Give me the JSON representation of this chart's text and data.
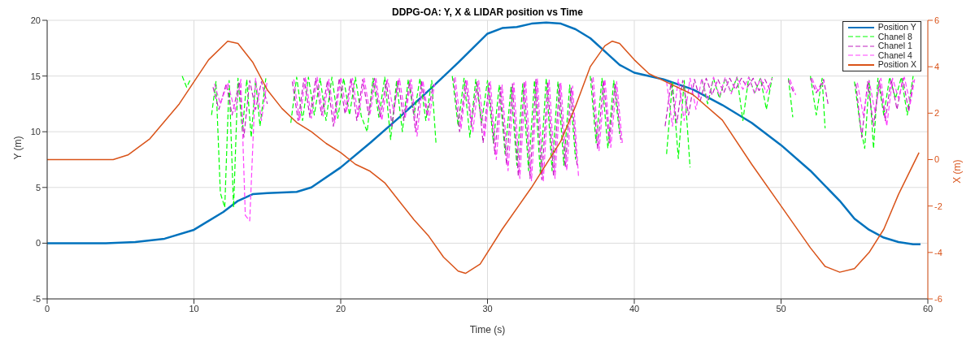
{
  "chart_data": {
    "type": "line",
    "title": "DDPG-OA: Y, X & LIDAR position vs Time",
    "xlabel": "Time (s)",
    "ylabel": "Y (m)",
    "y2label": "X (m)",
    "xlim": [
      0,
      60
    ],
    "xticks": [
      0,
      10,
      20,
      30,
      40,
      50,
      60
    ],
    "ylim": [
      -5,
      20
    ],
    "yticks": [
      -5,
      0,
      5,
      10,
      15,
      20
    ],
    "y2lim": [
      -6,
      6
    ],
    "y2ticks": [
      -6,
      -4,
      -2,
      0,
      2,
      4,
      6
    ],
    "grid": true,
    "legend": "top right",
    "marker": "none",
    "series": [
      {
        "name": "Position Y",
        "color": "#0072bd",
        "line_style": "solid",
        "x": [
          0,
          4,
          6,
          8,
          10,
          12,
          13,
          14,
          15,
          17,
          18,
          20,
          22,
          24,
          26,
          28,
          30,
          31,
          32,
          33,
          34,
          35,
          36,
          37,
          38,
          39,
          40,
          42,
          44,
          46,
          48,
          50,
          52,
          54,
          55,
          56,
          57,
          58,
          59,
          59.5
        ],
        "values": [
          0,
          0,
          0.1,
          0.4,
          1.2,
          2.8,
          3.8,
          4.4,
          4.5,
          4.6,
          5,
          6.8,
          9,
          11.3,
          13.7,
          16.2,
          18.8,
          19.3,
          19.4,
          19.7,
          19.8,
          19.7,
          19.2,
          18.4,
          17.2,
          16,
          15.3,
          14.7,
          13.8,
          12.4,
          10.8,
          8.8,
          6.5,
          3.8,
          2.2,
          1.2,
          0.5,
          0.1,
          -0.1,
          -0.1
        ]
      },
      {
        "name": "Chanel 8",
        "color": "#00ff00",
        "line_style": "dashed",
        "x": [
          9.2,
          9.5,
          9.8,
          10.1,
          11.2,
          11.5,
          11.8,
          12.1,
          12.4,
          12.7,
          13,
          13.3,
          13.6,
          13.9,
          14.2,
          14.5,
          14.9,
          15.2,
          16.6,
          17,
          17.4,
          17.8,
          18.2,
          18.6,
          19,
          19.4,
          19.8,
          20.2,
          20.6,
          21,
          21.4,
          21.8,
          22.2,
          22.6,
          23,
          23.4,
          23.8,
          24.2,
          24.6,
          25,
          25.4,
          25.8,
          26.2,
          26.5,
          26.8,
          27.6,
          28,
          28.4,
          28.8,
          29.2,
          29.6,
          30,
          30.4,
          30.8,
          31.2,
          31.6,
          32,
          32.4,
          32.8,
          33.2,
          33.6,
          34,
          34.4,
          34.8,
          35.2,
          35.6,
          36,
          36.4,
          37,
          37.4,
          37.8,
          38.2,
          38.6,
          39,
          39.3,
          42.2,
          42.6,
          43,
          43.4,
          43.8,
          44.2,
          44.6,
          45,
          45.4,
          45.8,
          46.2,
          46.6,
          47,
          47.4,
          47.8,
          48.2,
          48.6,
          49,
          49.4,
          49.8,
          50.5,
          50.8,
          51.2,
          52,
          52.4,
          52.8,
          53,
          53.3,
          55,
          55.4,
          55.7,
          56,
          56.3,
          56.6,
          57,
          57.4,
          57.8,
          58.2,
          58.6,
          59
        ],
        "values": [
          15,
          14,
          14.8,
          null,
          11.5,
          14.5,
          4.5,
          3.2,
          14.6,
          3.2,
          14.8,
          10,
          14.7,
          9.5,
          14.6,
          10.5,
          14.8,
          null,
          10.8,
          14.9,
          11,
          14.9,
          11.5,
          14.8,
          11,
          14.9,
          11.2,
          14.8,
          11.5,
          14.9,
          11.4,
          10,
          14.8,
          11.3,
          14.9,
          9.3,
          14.5,
          10,
          14.7,
          11.5,
          14.8,
          11,
          14.6,
          8.8,
          null,
          15,
          10.5,
          14.8,
          9.5,
          14.7,
          10.8,
          14.6,
          9,
          14.2,
          8,
          14,
          7,
          14.3,
          6.5,
          14.6,
          6.2,
          14.8,
          6.5,
          14.5,
          7,
          14.2,
          7.5,
          null,
          15,
          9,
          14.8,
          8.5,
          14.6,
          9.8,
          null,
          8,
          14.5,
          7.6,
          14.6,
          6.8,
          null,
          14.7,
          12.5,
          14.8,
          13,
          14.8,
          13.5,
          14.9,
          11,
          14.9,
          13.5,
          14.8,
          12,
          14.9,
          null,
          14.8,
          11.3,
          null,
          15,
          11.5,
          14.8,
          10.3,
          null,
          14.5,
          10.5,
          8.5,
          14.6,
          8.5,
          14.8,
          11.5,
          14.9,
          13,
          14.9,
          11.5,
          15
        ]
      },
      {
        "name": "Chanel 1",
        "color": "#c020c0",
        "line_style": "dashed",
        "x": [
          11.3,
          11.7,
          12.2,
          12.6,
          13.1,
          13.4,
          13.8,
          14.2,
          14.6,
          15,
          15.3,
          16.7,
          17.1,
          17.5,
          17.9,
          18.3,
          18.7,
          19.1,
          19.5,
          19.9,
          20.3,
          20.7,
          21.1,
          21.5,
          21.9,
          22.3,
          22.7,
          23.1,
          23.5,
          23.9,
          24.3,
          24.7,
          25.1,
          25.5,
          25.9,
          26.3,
          26.6,
          27.7,
          28.1,
          28.5,
          28.9,
          29.3,
          29.7,
          30.1,
          30.5,
          30.9,
          31.3,
          31.7,
          32.1,
          32.5,
          32.9,
          33.3,
          33.7,
          34.1,
          34.5,
          34.9,
          35.3,
          35.7,
          36.1,
          36.4,
          37.1,
          37.5,
          37.9,
          38.3,
          38.7,
          39.1,
          39.3,
          42.1,
          42.5,
          42.9,
          43.3,
          43.7,
          44.1,
          44.5,
          44.9,
          45.3,
          45.7,
          46.1,
          46.5,
          46.9,
          47.3,
          47.7,
          48.1,
          48.5,
          48.9,
          49.3,
          49.7,
          50.5,
          50.9,
          51.3,
          52,
          52.4,
          52.9,
          53.2,
          53.4,
          55.1,
          55.5,
          55.9,
          56.3,
          56.7,
          57.1,
          57.5,
          57.9,
          58.3,
          58.7,
          59
        ],
        "values": [
          14,
          12,
          14.3,
          11.5,
          14.5,
          9.5,
          14.6,
          12,
          14.5,
          12.5,
          null,
          14.5,
          11,
          14.8,
          11.3,
          14.8,
          11.5,
          14.6,
          10.5,
          14.8,
          11.6,
          14.8,
          11,
          14.7,
          11.5,
          14.8,
          11.2,
          14.6,
          10.5,
          14.7,
          11,
          14.6,
          10,
          14.5,
          11.4,
          14.2,
          null,
          14.8,
          10,
          14.6,
          10.6,
          14.5,
          9,
          14.4,
          8,
          14,
          7,
          14.3,
          6,
          14.5,
          5.8,
          14.7,
          5.7,
          14.5,
          6,
          14.3,
          6.8,
          14,
          7,
          null,
          14.8,
          8.5,
          14.6,
          9,
          14.4,
          9,
          null,
          10.5,
          14.4,
          10.8,
          14.6,
          11.5,
          14.7,
          12.8,
          14.8,
          13.3,
          14.7,
          13.5,
          14.8,
          13.8,
          14.8,
          14,
          14.8,
          13.7,
          14.7,
          13.6,
          null,
          14.6,
          13.4,
          null,
          14.8,
          13.5,
          14.7,
          12.5,
          null,
          14.3,
          9.5,
          14.5,
          10.5,
          14.6,
          11,
          14.7,
          12,
          14.8,
          11.8,
          14.6
        ]
      },
      {
        "name": "Chanel 4",
        "color": "#ff40ff",
        "line_style": "dashed",
        "x": [
          11.4,
          11.8,
          12.3,
          12.8,
          13.2,
          13.5,
          13.8,
          14.2,
          14.6,
          15,
          15.3,
          16.8,
          17.2,
          17.6,
          18,
          18.4,
          18.8,
          19.2,
          19.6,
          20,
          20.4,
          20.8,
          21.2,
          21.6,
          22,
          22.4,
          22.8,
          23.2,
          23.6,
          24,
          24.4,
          24.8,
          25.2,
          25.6,
          26,
          26.4,
          26.6,
          27.8,
          28.2,
          28.6,
          29,
          29.4,
          29.8,
          30.2,
          30.6,
          31,
          31.4,
          31.8,
          32.2,
          32.6,
          33,
          33.4,
          33.8,
          34.2,
          34.6,
          35,
          35.4,
          35.8,
          36.2,
          36.4,
          37.2,
          37.6,
          38,
          38.4,
          38.8,
          39.2,
          39.3,
          42.2,
          42.6,
          43,
          43.4,
          43.8,
          44.2,
          44.6,
          45,
          45.4,
          45.8,
          46.2,
          46.6,
          47,
          47.4,
          47.8,
          48.2,
          48.6,
          49,
          49.4,
          49.7,
          50.6,
          51,
          51.3,
          52.1,
          52.5,
          53,
          53.3,
          55.2,
          55.6,
          56,
          56.4,
          56.8,
          57.2,
          57.6,
          58,
          58.4,
          58.8,
          59.1
        ],
        "values": [
          14.3,
          12.5,
          14.4,
          11.8,
          14.7,
          2.5,
          2,
          14.8,
          11,
          14.6,
          null,
          14.7,
          11,
          14.9,
          11.2,
          14.9,
          11.4,
          14.7,
          10.8,
          14.9,
          11.8,
          14.8,
          11.3,
          14.8,
          11.6,
          14.8,
          11,
          14.7,
          11.8,
          14.8,
          11.3,
          14.7,
          9.6,
          14.6,
          11,
          14.3,
          null,
          14.9,
          10.3,
          14.7,
          10,
          14.6,
          9.5,
          14.5,
          7.5,
          14.2,
          6.5,
          14.4,
          5.8,
          14.6,
          5.6,
          14.8,
          5.5,
          14.7,
          5.8,
          14.4,
          6.5,
          14.1,
          6,
          null,
          14.9,
          8.3,
          14.7,
          8.6,
          14.5,
          8.8,
          null,
          14.5,
          10.5,
          14.7,
          11,
          14.8,
          12,
          14.8,
          12.8,
          14.9,
          13.2,
          14.9,
          13.4,
          14.9,
          13.8,
          14.9,
          13.4,
          14.8,
          13.5,
          14.8,
          null,
          14.7,
          13.3,
          null,
          14.8,
          13.6,
          14.6,
          null,
          14.4,
          11.5,
          14.6,
          11.8,
          14.8,
          10.5,
          14.8,
          13,
          14.9,
          12.5,
          14.7
        ]
      },
      {
        "name": "Position X",
        "color": "#d95319",
        "line_style": "solid",
        "axis": "y2",
        "x": [
          0,
          4.5,
          5.5,
          7,
          9,
          11,
          12.3,
          13,
          14,
          15,
          16,
          17,
          18,
          19,
          20,
          21,
          22,
          23,
          24,
          25,
          26,
          27,
          28,
          28.5,
          29.5,
          31,
          33,
          35,
          36,
          37,
          38,
          38.5,
          39,
          40,
          41,
          42,
          44,
          46,
          48,
          50,
          52,
          53,
          54,
          55,
          56,
          57,
          58,
          59.4
        ],
        "values": [
          0,
          0,
          0.2,
          0.9,
          2.4,
          4.3,
          5.1,
          5,
          4.2,
          3,
          2.2,
          1.6,
          1.2,
          0.7,
          0.3,
          -0.2,
          -0.5,
          -1,
          -1.8,
          -2.6,
          -3.3,
          -4.2,
          -4.8,
          -4.9,
          -4.5,
          -3,
          -1.2,
          0.8,
          2.3,
          4,
          4.9,
          5.1,
          5,
          4.3,
          3.7,
          3.4,
          2.8,
          1.7,
          -0.2,
          -2,
          -3.8,
          -4.6,
          -4.85,
          -4.7,
          -4,
          -3,
          -1.5,
          0.3
        ]
      }
    ]
  }
}
